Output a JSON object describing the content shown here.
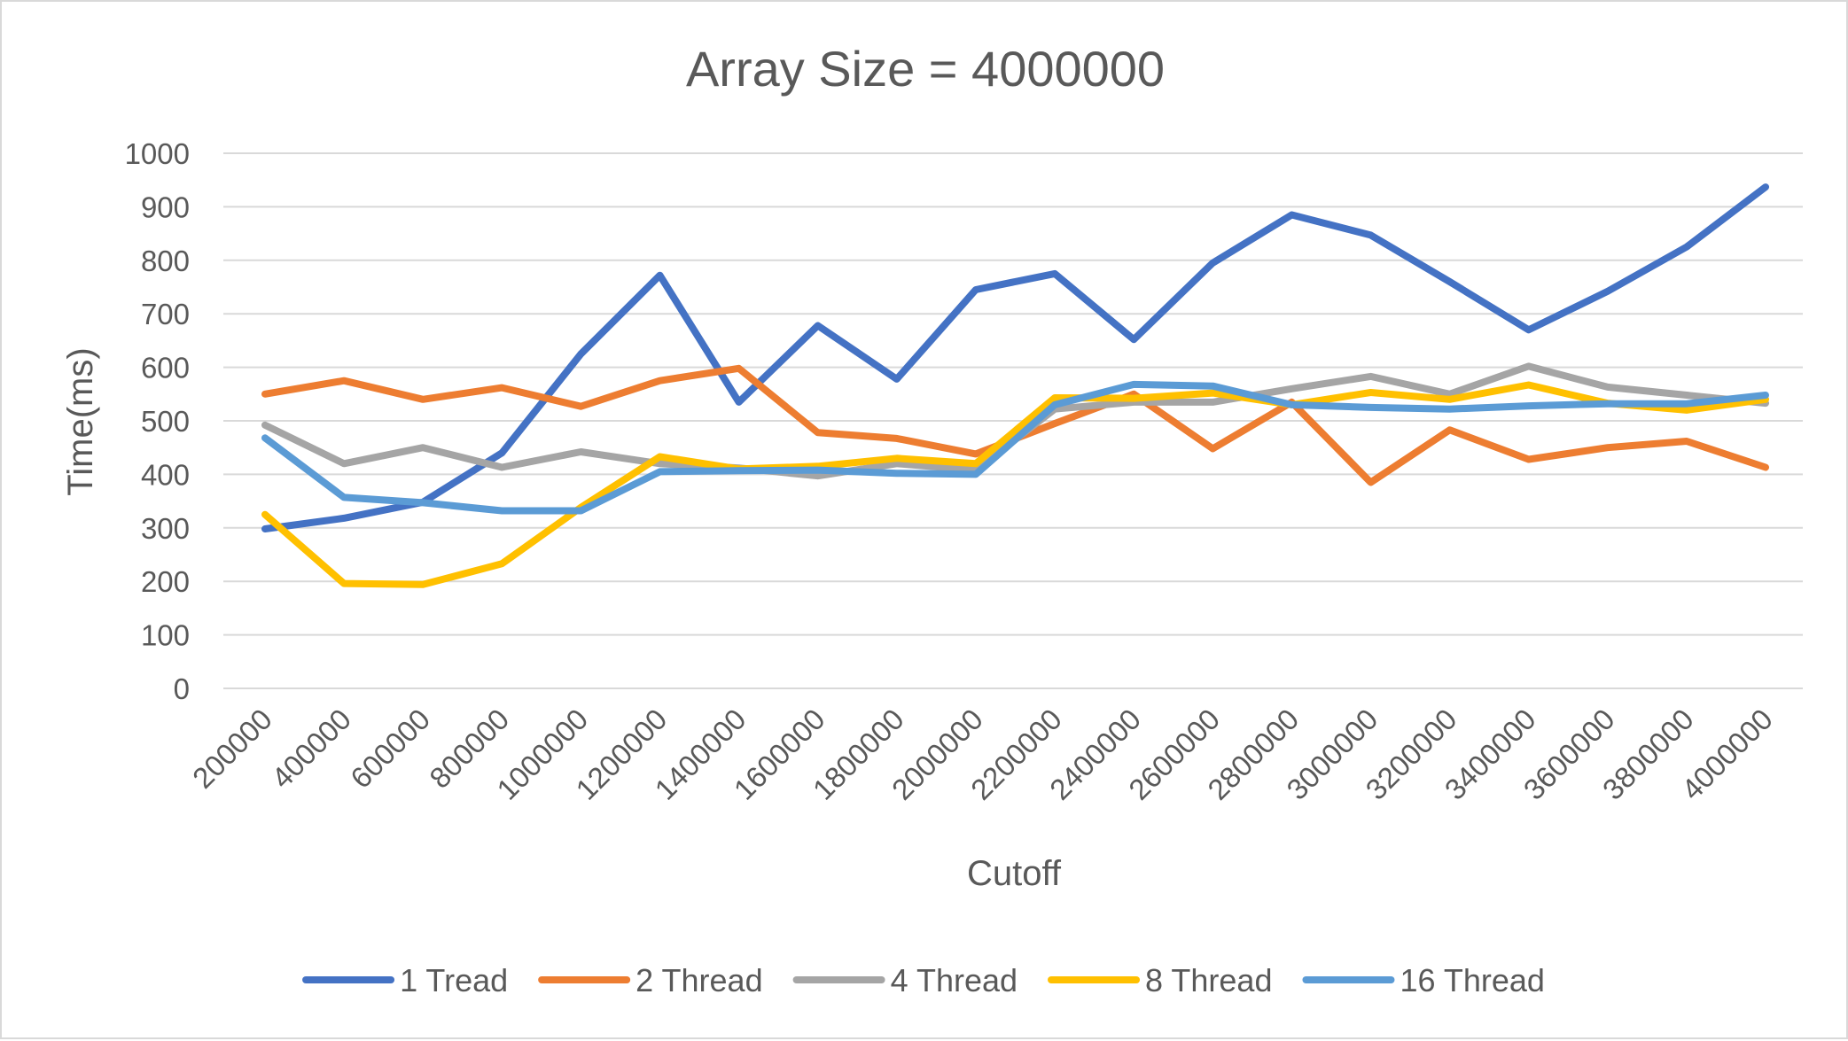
{
  "chart_data": {
    "type": "line",
    "title": "Array Size = 4000000",
    "xlabel": "Cutoff",
    "ylabel": "Time(ms)",
    "ylim": [
      0,
      1000
    ],
    "yticks": [
      "0",
      "100",
      "200",
      "300",
      "400",
      "500",
      "600",
      "700",
      "800",
      "900",
      "1000"
    ],
    "grid": true,
    "legend_position": "bottom",
    "categories": [
      "200000",
      "400000",
      "600000",
      "800000",
      "1000000",
      "1200000",
      "1400000",
      "1600000",
      "1800000",
      "2000000",
      "2200000",
      "2400000",
      "2600000",
      "2800000",
      "3000000",
      "3200000",
      "3400000",
      "3600000",
      "3800000",
      "4000000"
    ],
    "series": [
      {
        "name": "1 Tread",
        "color": "#4472C4",
        "values": [
          298,
          318,
          348,
          440,
          625,
          772,
          535,
          678,
          578,
          745,
          775,
          652,
          795,
          885,
          847,
          760,
          670,
          742,
          825,
          937
        ]
      },
      {
        "name": "2 Thread",
        "color": "#ED7D31",
        "values": [
          550,
          575,
          540,
          562,
          527,
          575,
          598,
          478,
          467,
          438,
          495,
          550,
          448,
          535,
          385,
          483,
          428,
          450,
          462,
          413
        ]
      },
      {
        "name": "4 Thread",
        "color": "#A5A5A5",
        "values": [
          492,
          420,
          450,
          413,
          442,
          420,
          412,
          397,
          420,
          408,
          522,
          535,
          535,
          560,
          583,
          550,
          602,
          563,
          548,
          533
        ]
      },
      {
        "name": "8 Thread",
        "color": "#FFC000",
        "values": [
          325,
          196,
          194,
          233,
          338,
          433,
          410,
          415,
          430,
          420,
          543,
          542,
          552,
          530,
          553,
          540,
          567,
          533,
          520,
          540
        ]
      },
      {
        "name": "16 Thread",
        "color": "#5B9BD5",
        "values": [
          468,
          357,
          347,
          332,
          332,
          405,
          407,
          408,
          402,
          400,
          530,
          568,
          565,
          530,
          525,
          522,
          528,
          532,
          532,
          548
        ]
      }
    ]
  }
}
